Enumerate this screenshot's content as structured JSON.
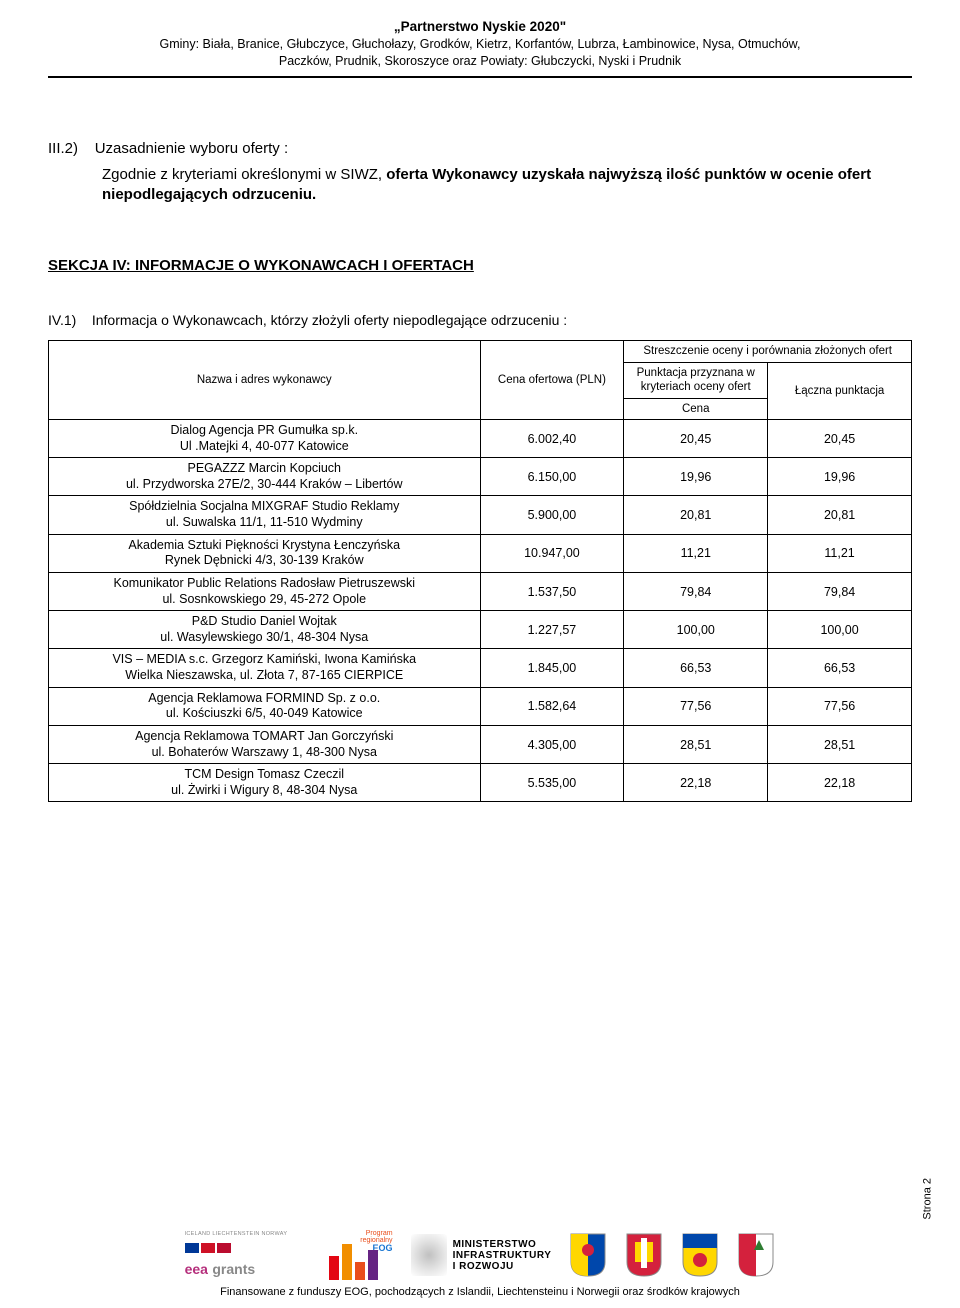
{
  "header": {
    "title": "„Partnerstwo Nyskie 2020\"",
    "line2": "Gminy: Biała, Branice, Głubczyce, Głuchołazy, Grodków, Kietrz, Korfantów, Lubrza, Łambinowice, Nysa, Otmuchów,",
    "line3": "Paczków, Prudnik, Skoroszyce oraz Powiaty: Głubczycki, Nyski i Prudnik"
  },
  "sec_iii2": {
    "num": "III.2)",
    "label": "Uzasadnienie  wyboru oferty :",
    "body_prefix": "Zgodnie z kryteriami określonymi w SIWZ,  ",
    "body_bold": "oferta Wykonawcy uzyskała najwyższą ilość punktów w  ocenie ofert niepodlegających odrzuceniu."
  },
  "sekcja_iv": "SEKCJA IV: INFORMACJE O WYKONAWCACH  I OFERTACH",
  "iv1": {
    "num": "IV.1)",
    "label": "Informacja o Wykonawcach, którzy złożyli oferty niepodlegające odrzuceniu :"
  },
  "table": {
    "col1": "Nazwa i adres wykonawcy",
    "col2": "Cena ofertowa (PLN)",
    "col3_top": "Streszczenie oceny i porównania złożonych ofert",
    "col3a": "Punktacja przyznana w kryteriach oceny ofert",
    "col3a_sub": "Cena",
    "col3b": "Łączna punktacja",
    "rows": [
      {
        "name_l1": "Dialog Agencja PR Gumułka sp.k.",
        "name_l2": "Ul .Matejki 4, 40-077 Katowice",
        "price": "6.002,40",
        "p1": "20,45",
        "p2": "20,45"
      },
      {
        "name_l1": "PEGAZZZ Marcin Kopciuch",
        "name_l2": "ul. Przydworska 27E/2, 30-444 Kraków – Libertów",
        "price": "6.150,00",
        "p1": "19,96",
        "p2": "19,96"
      },
      {
        "name_l1": "Spółdzielnia Socjalna MIXGRAF Studio Reklamy",
        "name_l2": "ul. Suwalska 11/1, 11-510 Wydminy",
        "price": "5.900,00",
        "p1": "20,81",
        "p2": "20,81"
      },
      {
        "name_l1": "Akademia Sztuki Piękności Krystyna Łenczyńska",
        "name_l2": "Rynek Dębnicki 4/3, 30-139 Kraków",
        "price": "10.947,00",
        "p1": "11,21",
        "p2": "11,21"
      },
      {
        "name_l1": "Komunikator Public Relations  Radosław Pietruszewski",
        "name_l2": "ul. Sosnkowskiego 29,  45-272 Opole",
        "price": "1.537,50",
        "p1": "79,84",
        "p2": "79,84"
      },
      {
        "name_l1": "P&D Studio Daniel Wojtak",
        "name_l2": "ul. Wasylewskiego 30/1, 48-304 Nysa",
        "price": "1.227,57",
        "p1": "100,00",
        "p2": "100,00"
      },
      {
        "name_l1": "VIS – MEDIA s.c. Grzegorz Kamiński, Iwona Kamińska",
        "name_l2": "Wielka Nieszawska, ul. Złota 7, 87-165 CIERPICE",
        "price": "1.845,00",
        "p1": "66,53",
        "p2": "66,53"
      },
      {
        "name_l1": "Agencja Reklamowa FORMIND Sp. z o.o.",
        "name_l2": "ul. Kościuszki 6/5, 40-049 Katowice",
        "price": "1.582,64",
        "p1": "77,56",
        "p2": "77,56"
      },
      {
        "name_l1": "Agencja Reklamowa TOMART Jan Gorczyński",
        "name_l2": "ul. Bohaterów Warszawy 1, 48-300 Nysa",
        "price": "4.305,00",
        "p1": "28,51",
        "p2": "28,51"
      },
      {
        "name_l1": "TCM Design Tomasz Czeczil",
        "name_l2": "ul. Żwirki i Wigury 8, 48-304 Nysa",
        "price": "5.535,00",
        "p1": "22,18",
        "p2": "22,18"
      }
    ]
  },
  "footer": {
    "funding": "Finansowane z funduszy EOG, pochodzących z Islandii, Liechtensteinu i Norwegii oraz środków krajowych",
    "page": "Strona 2",
    "eea_top": "ICELAND LIECHTENSTEIN NORWAY",
    "eea_main": "eea",
    "eea_sub": "grants",
    "city_l1": "Program",
    "city_l2": "regionalny",
    "city_l3": "EOG",
    "min_l1": "MINISTERSTWO",
    "min_l2": "INFRASTRUKTURY",
    "min_l3": "I ROZWOJU"
  },
  "colors": {
    "iceland": "#003897",
    "liecht": "#ce1126",
    "norway": "#ba0c2f",
    "bar1": "#e30613",
    "bar2": "#f18e00",
    "bar3": "#e94e1b",
    "bar4": "#662483",
    "coa_blue": "#0047ab",
    "coa_red": "#d4213d",
    "coa_yellow": "#ffd700",
    "coa_green": "#2e7d32"
  }
}
